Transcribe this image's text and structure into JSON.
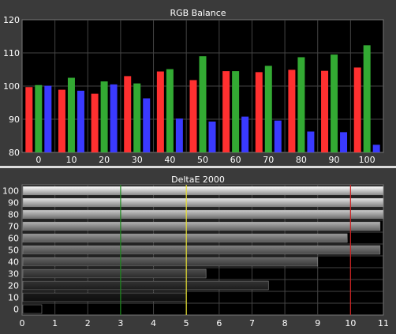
{
  "chart_data": [
    {
      "type": "bar",
      "title": "RGB Balance",
      "categories": [
        "0",
        "10",
        "20",
        "30",
        "40",
        "50",
        "60",
        "70",
        "80",
        "90",
        "100"
      ],
      "ylim": [
        80,
        120
      ],
      "yticks": [
        80,
        90,
        100,
        110,
        120
      ],
      "grid": true,
      "series": [
        {
          "color": "#ff3030",
          "values": [
            99.7,
            98.9,
            97.7,
            103.0,
            104.4,
            101.8,
            104.5,
            104.2,
            104.9,
            104.6,
            105.6
          ]
        },
        {
          "color": "#33aa33",
          "values": [
            100.3,
            102.5,
            101.4,
            100.8,
            105.1,
            109.0,
            104.5,
            106.1,
            108.7,
            109.5,
            112.3
          ]
        },
        {
          "color": "#3a3aff",
          "values": [
            100.1,
            98.6,
            100.5,
            96.3,
            90.2,
            89.3,
            90.8,
            89.6,
            86.3,
            86.1,
            82.3
          ]
        }
      ]
    },
    {
      "type": "bar",
      "orientation": "horizontal",
      "title": "DeltaE 2000",
      "categories": [
        "0",
        "10",
        "20",
        "30",
        "40",
        "50",
        "60",
        "70",
        "80",
        "90",
        "100"
      ],
      "values": [
        0.6,
        5.0,
        7.5,
        5.6,
        9.0,
        10.9,
        9.9,
        10.9,
        11.0,
        11.0,
        11.0
      ],
      "xlim": [
        0,
        11
      ],
      "xticks": [
        0,
        1,
        2,
        3,
        4,
        5,
        6,
        7,
        8,
        9,
        10,
        11
      ],
      "grid": true,
      "reference_lines": [
        {
          "value": 3,
          "color": "#1a8a1a"
        },
        {
          "value": 5,
          "color": "#e8e030"
        },
        {
          "value": 10,
          "color": "#cc2222"
        }
      ]
    }
  ]
}
